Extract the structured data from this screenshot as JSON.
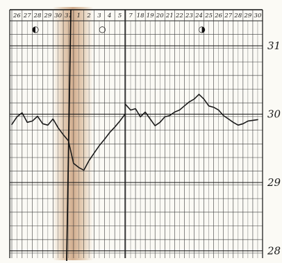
{
  "chart_data": {
    "type": "line",
    "title": "",
    "xlabel": "",
    "ylabel": "",
    "ylim": [
      28,
      31.3
    ],
    "y_ticks": [
      {
        "value": 31,
        "label": "31"
      },
      {
        "value": 30,
        "label": "30"
      },
      {
        "value": 29,
        "label": "29"
      },
      {
        "value": 28,
        "label": "28"
      }
    ],
    "panels": [
      {
        "name": "left",
        "x_labels": [
          "26",
          "27",
          "28",
          "29",
          "30",
          "31",
          "1",
          "2",
          "3",
          "4",
          "5"
        ],
        "moon_phases": [
          {
            "day_index": 2.3,
            "symbol": "◐"
          },
          {
            "day_index": 8.8,
            "symbol": "○"
          }
        ],
        "series": [
          {
            "x": [
              0,
              0.5,
              1,
              1.5,
              2,
              2.5,
              3,
              3.5,
              4,
              4.5,
              5,
              5.5,
              6,
              6.5,
              7,
              7.5,
              8,
              8.5,
              9,
              9.5,
              10,
              10.5,
              11
            ],
            "y": [
              29.85,
              29.96,
              30.02,
              29.88,
              29.9,
              29.97,
              29.86,
              29.84,
              29.93,
              29.8,
              29.7,
              29.61,
              29.28,
              29.22,
              29.18,
              29.32,
              29.43,
              29.54,
              29.63,
              29.73,
              29.81,
              29.9,
              30.0
            ]
          }
        ]
      },
      {
        "name": "right",
        "x_labels": [
          "7",
          "18",
          "19",
          "20",
          "21",
          "22",
          "23",
          "24",
          "25",
          "26",
          "27",
          "28",
          "29",
          "30"
        ],
        "moon_phases": [
          {
            "day_index": 7.8,
            "symbol": "◑"
          }
        ],
        "series": [
          {
            "x": [
              0,
              0.5,
              1,
              1.5,
              2,
              2.5,
              3,
              3.5,
              4,
              4.5,
              5,
              5.5,
              6,
              6.5,
              7,
              7.5,
              8,
              8.5,
              9,
              9.5,
              10,
              10.5,
              11,
              11.5,
              12,
              12.5,
              13,
              13.5
            ],
            "y": [
              30.14,
              30.06,
              30.08,
              29.96,
              30.03,
              29.93,
              29.83,
              29.88,
              29.96,
              29.98,
              30.03,
              30.06,
              30.12,
              30.18,
              30.22,
              30.29,
              30.22,
              30.12,
              30.1,
              30.06,
              29.98,
              29.93,
              29.88,
              29.84,
              29.86,
              29.9,
              29.91,
              29.92
            ]
          }
        ]
      }
    ]
  }
}
